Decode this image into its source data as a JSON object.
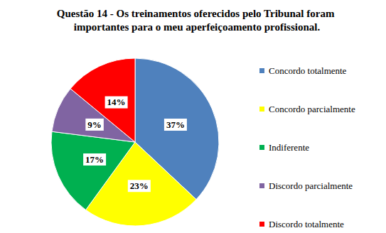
{
  "chart_data": {
    "type": "pie",
    "title": "Questão 14 - Os treinamentos oferecidos pelo Tribunal foram importantes para o meu aperfeiçoamento profissional.",
    "categories": [
      "Concordo totalmente",
      "Concordo parcialmente",
      "Indiferente",
      "Discordo parcialmente",
      "Discordo totalmente"
    ],
    "values": [
      37,
      23,
      17,
      9,
      14
    ],
    "value_labels": [
      "37%",
      "23%",
      "17%",
      "9%",
      "14%"
    ],
    "colors": [
      "#4f81bd",
      "#ffff00",
      "#00b050",
      "#8064a2",
      "#ff0000"
    ],
    "data_labels": true,
    "legend": "right"
  }
}
